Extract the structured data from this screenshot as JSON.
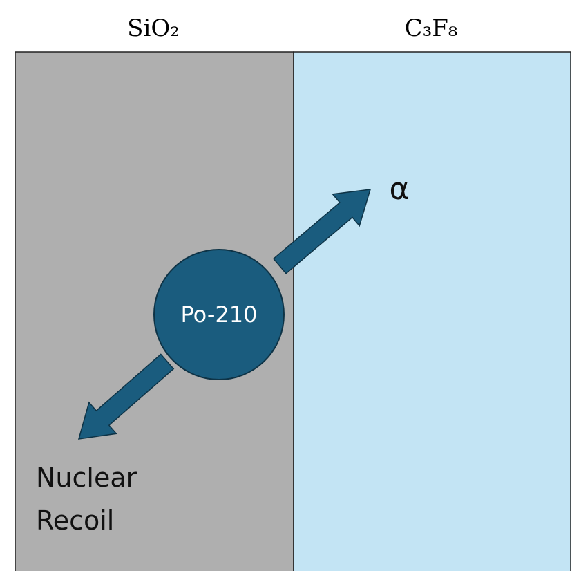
{
  "regions": {
    "left": {
      "label": "SiO₂"
    },
    "right": {
      "label": "C₃F₈"
    }
  },
  "source": {
    "label": "Po-210"
  },
  "alpha_label": "α",
  "recoil_label": {
    "lines": [
      "Nuclear",
      "Recoil"
    ]
  }
}
